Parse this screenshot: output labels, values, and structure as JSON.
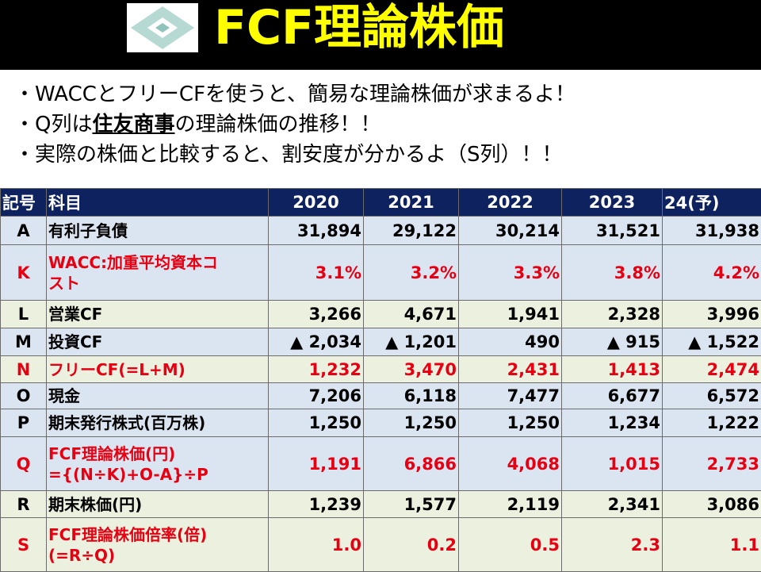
{
  "header": {
    "title": "FCF理論株価"
  },
  "bullets": [
    [
      "・WACCとフリーCFを使うと、簡易な理論株価が求まるよ！"
    ],
    [
      "・Q列は",
      "住友商事",
      "の理論株価の推移！！"
    ],
    [
      "・実際の株価と比較すると、割安度が分かるよ（S列）！！"
    ]
  ],
  "table": {
    "columns": [
      "記号",
      "科目",
      "2020",
      "2021",
      "2022",
      "2023",
      "24(予)"
    ],
    "rows": [
      {
        "code": "A",
        "item": "有利子負債",
        "values": [
          "31,894",
          "29,122",
          "30,214",
          "31,521",
          "31,938"
        ],
        "fill": "#dbe5f1",
        "color": "#000000"
      },
      {
        "code": "K",
        "item": "WACC:加重平均資本コ\nスト",
        "values": [
          "3.1%",
          "3.2%",
          "3.3%",
          "3.8%",
          "4.2%"
        ],
        "fill": "#dbe5f1",
        "color": "#e60012"
      },
      {
        "code": "L",
        "item": "営業CF",
        "values": [
          "3,266",
          "4,671",
          "1,941",
          "2,328",
          "3,996"
        ],
        "fill": "#ebf1de",
        "color": "#000000"
      },
      {
        "code": "M",
        "item": "投資CF",
        "values": [
          "▲ 2,034",
          "▲ 1,201",
          "490",
          "▲ 915",
          "▲ 1,522"
        ],
        "fill": "#dbe5f1",
        "color": "#000000"
      },
      {
        "code": "N",
        "item": "フリーCF(=L+M)",
        "values": [
          "1,232",
          "3,470",
          "2,431",
          "1,413",
          "2,474"
        ],
        "fill": "#ebf1de",
        "color": "#e60012"
      },
      {
        "code": "O",
        "item": "現金",
        "values": [
          "7,206",
          "6,118",
          "7,477",
          "6,677",
          "6,572"
        ],
        "fill": "#dbe5f1",
        "color": "#000000"
      },
      {
        "code": "P",
        "item": "期末発行株式(百万株)",
        "values": [
          "1,250",
          "1,250",
          "1,250",
          "1,234",
          "1,222"
        ],
        "fill": "#dbe5f1",
        "color": "#000000"
      },
      {
        "code": "Q",
        "item": "FCF理論株価(円)\n={(N÷K)+O-A}÷P",
        "values": [
          "1,191",
          "6,866",
          "4,068",
          "1,015",
          "2,733"
        ],
        "fill": "#dbe5f1",
        "color": "#e60012"
      },
      {
        "code": "R",
        "item": "期末株価(円)",
        "values": [
          "1,239",
          "1,577",
          "2,119",
          "2,341",
          "3,086"
        ],
        "fill": "#ebf1de",
        "color": "#000000"
      },
      {
        "code": "S",
        "item": "FCF理論株価倍率(倍)\n(=R÷Q)",
        "values": [
          "1.0",
          "0.2",
          "0.5",
          "2.3",
          "1.1"
        ],
        "fill": "#ebf1de",
        "color": "#e60012"
      }
    ]
  }
}
